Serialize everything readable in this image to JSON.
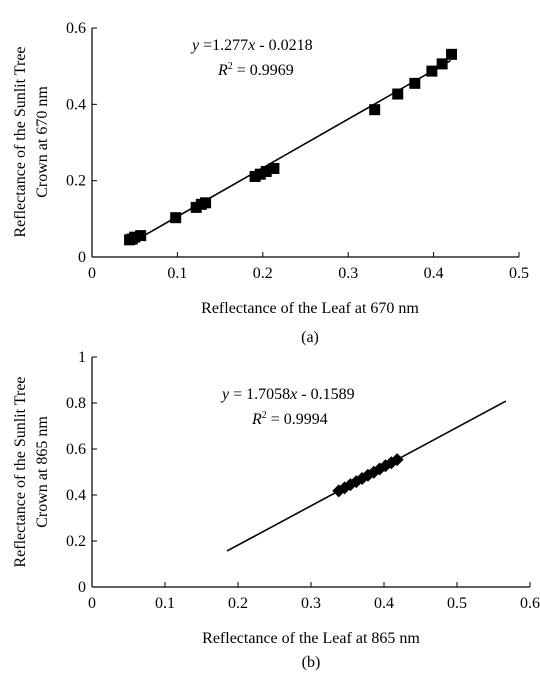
{
  "chart_data": [
    {
      "type": "scatter",
      "panel_label": "(a)",
      "xlabel": "Reflectance of the Leaf at 670 nm",
      "ylabel_lines": [
        "Reflectance of the Sunlit Tree",
        "Crown at 670 nm"
      ],
      "xlim": [
        0,
        0.5
      ],
      "ylim": [
        0,
        0.6
      ],
      "xticks": [
        0,
        0.1,
        0.2,
        0.3,
        0.4,
        0.5
      ],
      "xtick_labels": [
        "0",
        "0.1",
        "0.2",
        "0.3",
        "0.4",
        "0.5"
      ],
      "yticks": [
        0,
        0.2,
        0.4,
        0.6
      ],
      "ytick_labels": [
        "0",
        "0.2",
        "0.4",
        "0.6"
      ],
      "marker": "square",
      "equation": {
        "y": "y",
        "mid": " =1.277",
        "x": "x",
        "tail": " - 0.0218",
        "r": "R",
        "sup": "2",
        "rtail": " = 0.9969"
      },
      "fit": {
        "slope": 1.277,
        "intercept": -0.0218,
        "x_range": [
          0.043,
          0.42
        ]
      },
      "series": [
        {
          "points": [
            [
              0.044,
              0.045
            ],
            [
              0.047,
              0.047
            ],
            [
              0.05,
              0.052
            ],
            [
              0.057,
              0.056
            ],
            [
              0.098,
              0.103
            ],
            [
              0.122,
              0.13
            ],
            [
              0.128,
              0.138
            ],
            [
              0.133,
              0.142
            ],
            [
              0.191,
              0.211
            ],
            [
              0.197,
              0.217
            ],
            [
              0.204,
              0.224
            ],
            [
              0.213,
              0.232
            ],
            [
              0.331,
              0.386
            ],
            [
              0.358,
              0.427
            ],
            [
              0.378,
              0.455
            ],
            [
              0.398,
              0.487
            ],
            [
              0.41,
              0.506
            ],
            [
              0.421,
              0.531
            ]
          ]
        }
      ],
      "grid": false
    },
    {
      "type": "scatter",
      "panel_label": "(b)",
      "xlabel": "Reflectance of the Leaf at 865 nm",
      "ylabel_lines": [
        "Reflectance of the Sunlit Tree",
        "Crown at 865 nm"
      ],
      "xlim": [
        0,
        0.6
      ],
      "ylim": [
        0,
        1
      ],
      "xticks": [
        0,
        0.1,
        0.2,
        0.3,
        0.4,
        0.5,
        0.6
      ],
      "xtick_labels": [
        "0",
        "0.1",
        "0.2",
        "0.3",
        "0.4",
        "0.5",
        "0.6"
      ],
      "yticks": [
        0,
        0.2,
        0.4,
        0.6,
        0.8,
        1
      ],
      "ytick_labels": [
        "0",
        "0.2",
        "0.4",
        "0.6",
        "0.8",
        "1"
      ],
      "marker": "diamond",
      "equation": {
        "y": "y",
        "mid": " = 1.7058",
        "x": "x",
        "tail": " - 0.1589",
        "r": "R",
        "sup": "2",
        "rtail": " = 0.9994"
      },
      "fit": {
        "slope": 1.7058,
        "intercept": -0.1589,
        "x_range": [
          0.185,
          0.567
        ]
      },
      "series": [
        {
          "points": [
            [
              0.338,
              0.418
            ],
            [
              0.346,
              0.431
            ],
            [
              0.354,
              0.445
            ],
            [
              0.362,
              0.458
            ],
            [
              0.37,
              0.472
            ],
            [
              0.378,
              0.486
            ],
            [
              0.386,
              0.499
            ],
            [
              0.394,
              0.513
            ],
            [
              0.402,
              0.527
            ],
            [
              0.41,
              0.54
            ],
            [
              0.418,
              0.554
            ]
          ]
        }
      ],
      "grid": false
    }
  ]
}
